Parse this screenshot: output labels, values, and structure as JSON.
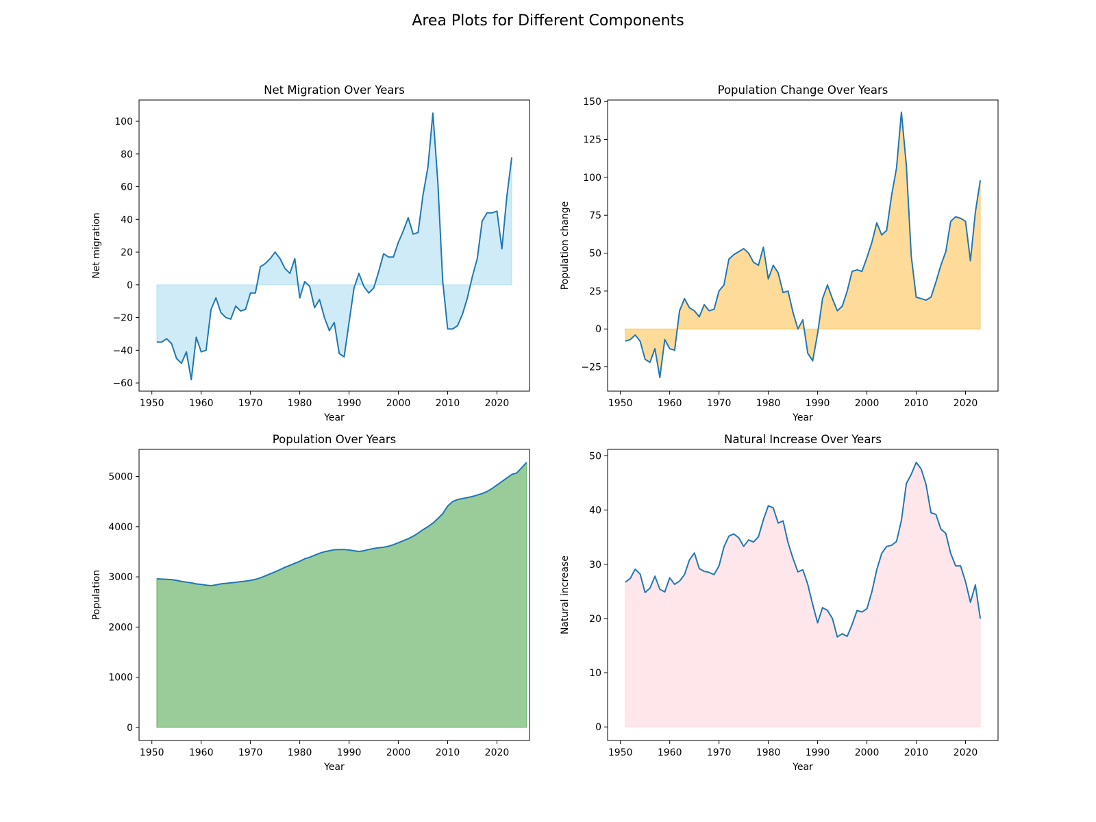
{
  "suptitle": "Area Plots for Different Components",
  "chart_data": [
    {
      "type": "area",
      "title": "Net Migration Over Years",
      "xlabel": "Year",
      "ylabel": "Net migration",
      "xlim": [
        1947.4,
        2026.6
      ],
      "ylim": [
        -65,
        113
      ],
      "xticks": [
        1950,
        1960,
        1970,
        1980,
        1990,
        2000,
        2010,
        2020
      ],
      "yticks": [
        -60,
        -40,
        -20,
        0,
        20,
        40,
        60,
        80,
        100
      ],
      "fill_color": "#87ceeb",
      "line_color": "#1f77b4",
      "grid": false,
      "x_start": 1951,
      "values": [
        -35,
        -35,
        -33,
        -36,
        -45,
        -48,
        -41,
        -58,
        -32,
        -41,
        -40,
        -15,
        -8,
        -17,
        -20,
        -21,
        -13,
        -16,
        -15,
        -5,
        -5,
        11,
        13,
        16,
        20,
        16,
        10,
        7,
        16,
        -8,
        2,
        -1,
        -14,
        -9,
        -20,
        -28,
        -23,
        -42,
        -44,
        -23,
        -2,
        7,
        -1,
        -5,
        -2,
        8,
        19,
        17,
        17,
        26,
        33,
        41,
        31,
        32,
        55,
        72,
        105,
        63,
        2,
        -27,
        -27,
        -25,
        -18,
        -8,
        5,
        16,
        39,
        44,
        44,
        45,
        22,
        54,
        78
      ]
    },
    {
      "type": "area",
      "title": "Population Change Over Years",
      "xlabel": "Year",
      "ylabel": "Population change",
      "xlim": [
        1947.4,
        2026.6
      ],
      "ylim": [
        -41,
        151
      ],
      "xticks": [
        1950,
        1960,
        1970,
        1980,
        1990,
        2000,
        2010,
        2020
      ],
      "yticks": [
        -25,
        0,
        25,
        50,
        75,
        100,
        125,
        150
      ],
      "fill_color": "#ffa500",
      "line_color": "#1f77b4",
      "grid": false,
      "x_start": 1951,
      "values": [
        -8,
        -7,
        -4,
        -8,
        -20,
        -22,
        -13,
        -32,
        -7,
        -13,
        -14,
        12,
        20,
        14,
        12,
        8,
        16,
        12,
        13,
        25,
        29,
        46,
        49,
        51,
        53,
        50,
        44,
        42,
        54,
        33,
        42,
        37,
        24,
        25,
        11,
        0,
        6,
        -16,
        -21,
        -3,
        20,
        29,
        20,
        12,
        15,
        25,
        38,
        39,
        38,
        47,
        57,
        70,
        62,
        65,
        88,
        106,
        143,
        108,
        48,
        21,
        20,
        19,
        21,
        31,
        42,
        51,
        71,
        74,
        73,
        71,
        45,
        77,
        98
      ]
    },
    {
      "type": "area",
      "title": "Population Over Years",
      "xlabel": "Year",
      "ylabel": "Population",
      "xlim": [
        1947.4,
        2026.6
      ],
      "ylim": [
        -260,
        5540
      ],
      "xticks": [
        1950,
        1960,
        1970,
        1980,
        1990,
        2000,
        2010,
        2020
      ],
      "yticks": [
        0,
        1000,
        2000,
        3000,
        4000,
        5000
      ],
      "fill_color": "#008000",
      "line_color": "#1f77b4",
      "grid": false,
      "x_start": 1951,
      "values": [
        2960,
        2955,
        2950,
        2945,
        2930,
        2910,
        2895,
        2880,
        2860,
        2850,
        2835,
        2825,
        2840,
        2860,
        2870,
        2880,
        2890,
        2905,
        2915,
        2930,
        2950,
        2980,
        3020,
        3060,
        3100,
        3145,
        3190,
        3230,
        3270,
        3310,
        3360,
        3390,
        3430,
        3470,
        3500,
        3520,
        3540,
        3545,
        3545,
        3535,
        3520,
        3505,
        3520,
        3545,
        3565,
        3580,
        3590,
        3610,
        3640,
        3680,
        3720,
        3760,
        3810,
        3870,
        3940,
        4000,
        4070,
        4160,
        4260,
        4410,
        4500,
        4540,
        4560,
        4580,
        4600,
        4630,
        4660,
        4700,
        4760,
        4830,
        4900,
        4970,
        5040,
        5070,
        5170,
        5280
      ]
    },
    {
      "type": "area",
      "title": "Natural Increase Over Years",
      "xlabel": "Year",
      "ylabel": "Natural increase",
      "xlim": [
        1947.4,
        2026.6
      ],
      "ylim": [
        -2.5,
        51.2
      ],
      "xticks": [
        1950,
        1960,
        1970,
        1980,
        1990,
        2000,
        2010,
        2020
      ],
      "yticks": [
        0,
        10,
        20,
        30,
        40,
        50
      ],
      "fill_color": "#ffc0cb",
      "line_color": "#1f77b4",
      "grid": false,
      "x_start": 1951,
      "values": [
        26.7,
        27.4,
        29.1,
        28.2,
        24.8,
        25.6,
        27.8,
        25.4,
        24.9,
        27.5,
        26.3,
        26.9,
        28.1,
        30.8,
        32.1,
        29.2,
        28.7,
        28.5,
        28.1,
        29.7,
        33.2,
        35.2,
        35.6,
        34.9,
        33.3,
        34.5,
        34.1,
        35.1,
        38.2,
        40.8,
        40.4,
        37.6,
        38.0,
        34.0,
        31.1,
        28.6,
        29.0,
        26.3,
        22.6,
        19.2,
        22.0,
        21.5,
        20.0,
        16.6,
        17.2,
        16.7,
        18.9,
        21.5,
        21.2,
        21.8,
        24.9,
        29.0,
        32.0,
        33.3,
        33.5,
        34.2,
        38.1,
        44.9,
        46.6,
        48.8,
        47.6,
        44.7,
        39.5,
        39.2,
        36.5,
        35.7,
        32.0,
        29.7,
        29.7,
        26.8,
        23.0,
        26.2,
        20.0
      ]
    }
  ]
}
